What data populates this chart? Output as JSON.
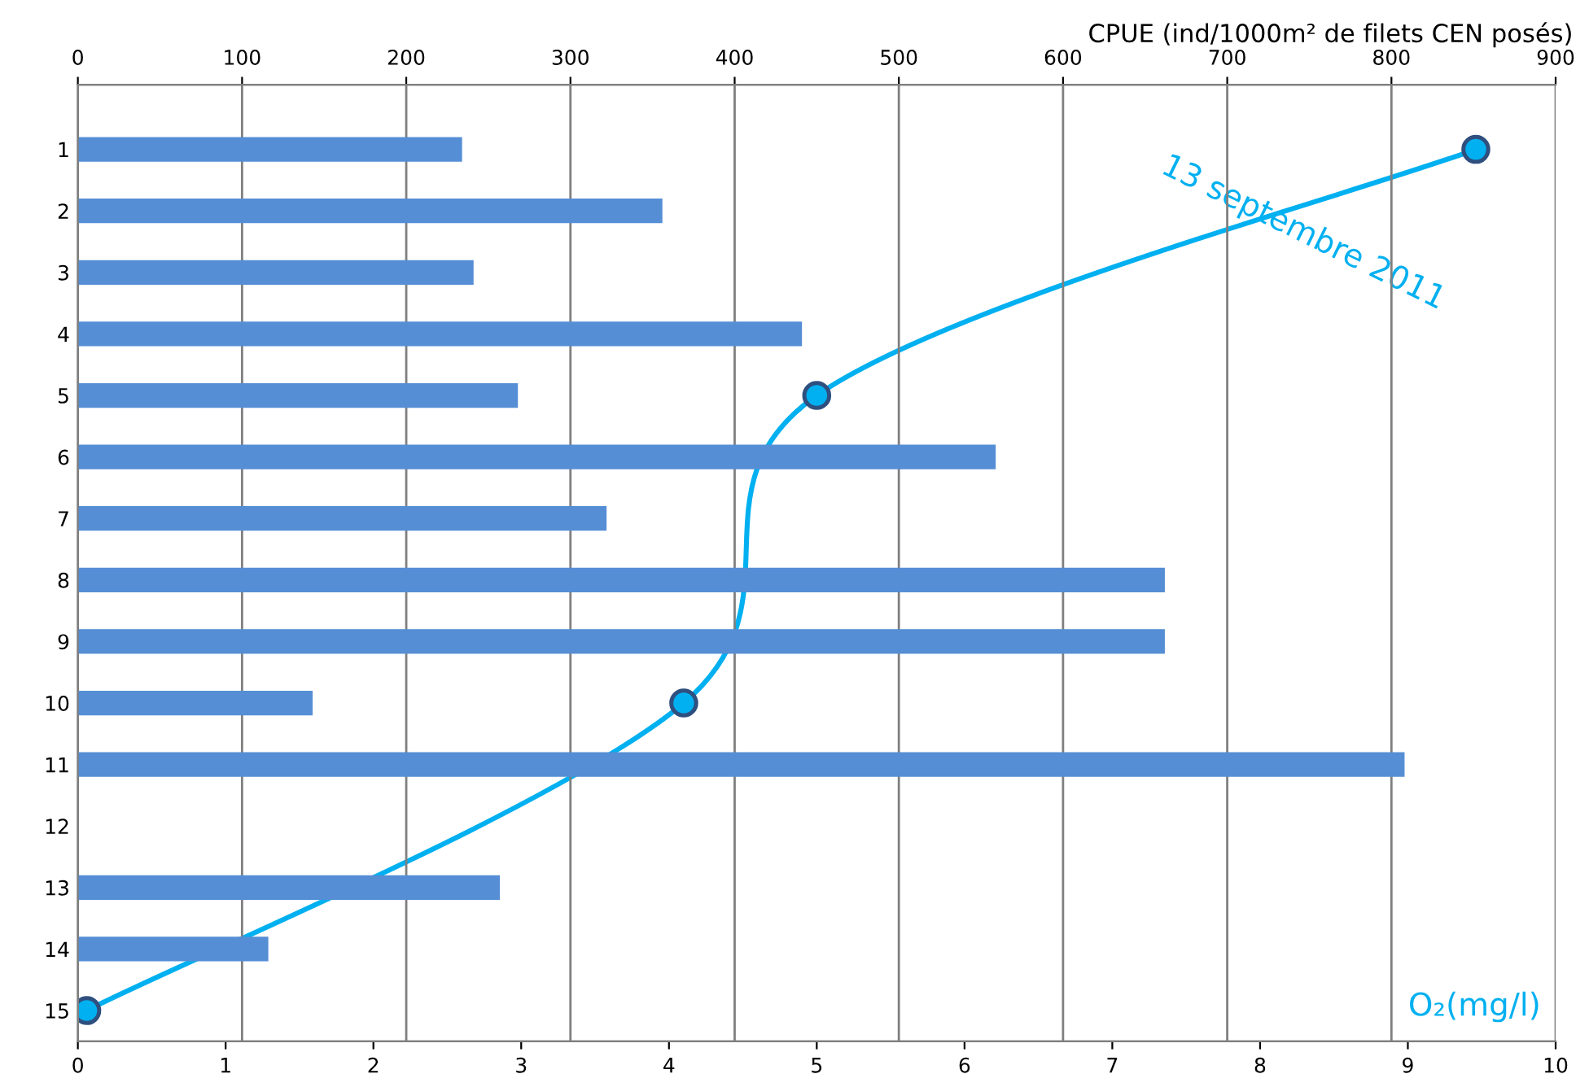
{
  "chart_data": {
    "type": "bar",
    "orientation": "horizontal",
    "categories": [
      "1",
      "2",
      "3",
      "4",
      "5",
      "6",
      "7",
      "8",
      "9",
      "10",
      "11",
      "12",
      "13",
      "14",
      "15"
    ],
    "series": [
      {
        "axis": "x2",
        "color": "#558ed5",
        "values": [
          234,
          356,
          241,
          441,
          268,
          559,
          322,
          662,
          662,
          143,
          808,
          null,
          257,
          116,
          null
        ]
      },
      {
        "type": "line",
        "name": "13 septembre 2011",
        "color": "#00b0f0",
        "marker": "circle",
        "values": [
          9.46,
          null,
          null,
          null,
          5.0,
          null,
          null,
          null,
          null,
          4.1,
          null,
          null,
          null,
          null,
          0.06
        ]
      }
    ],
    "x2label": "CPUE (ind/1000m² de filets CEN posés)",
    "x2lim": [
      0,
      900
    ],
    "x2ticks": [
      0,
      100,
      200,
      300,
      400,
      500,
      600,
      700,
      800,
      900
    ],
    "xlabel": "O₂(mg/l)",
    "xlim": [
      0,
      10
    ],
    "xticks": [
      0,
      1,
      2,
      3,
      4,
      5,
      6,
      7,
      8,
      9,
      10
    ],
    "grid": "x2",
    "legend": false
  }
}
